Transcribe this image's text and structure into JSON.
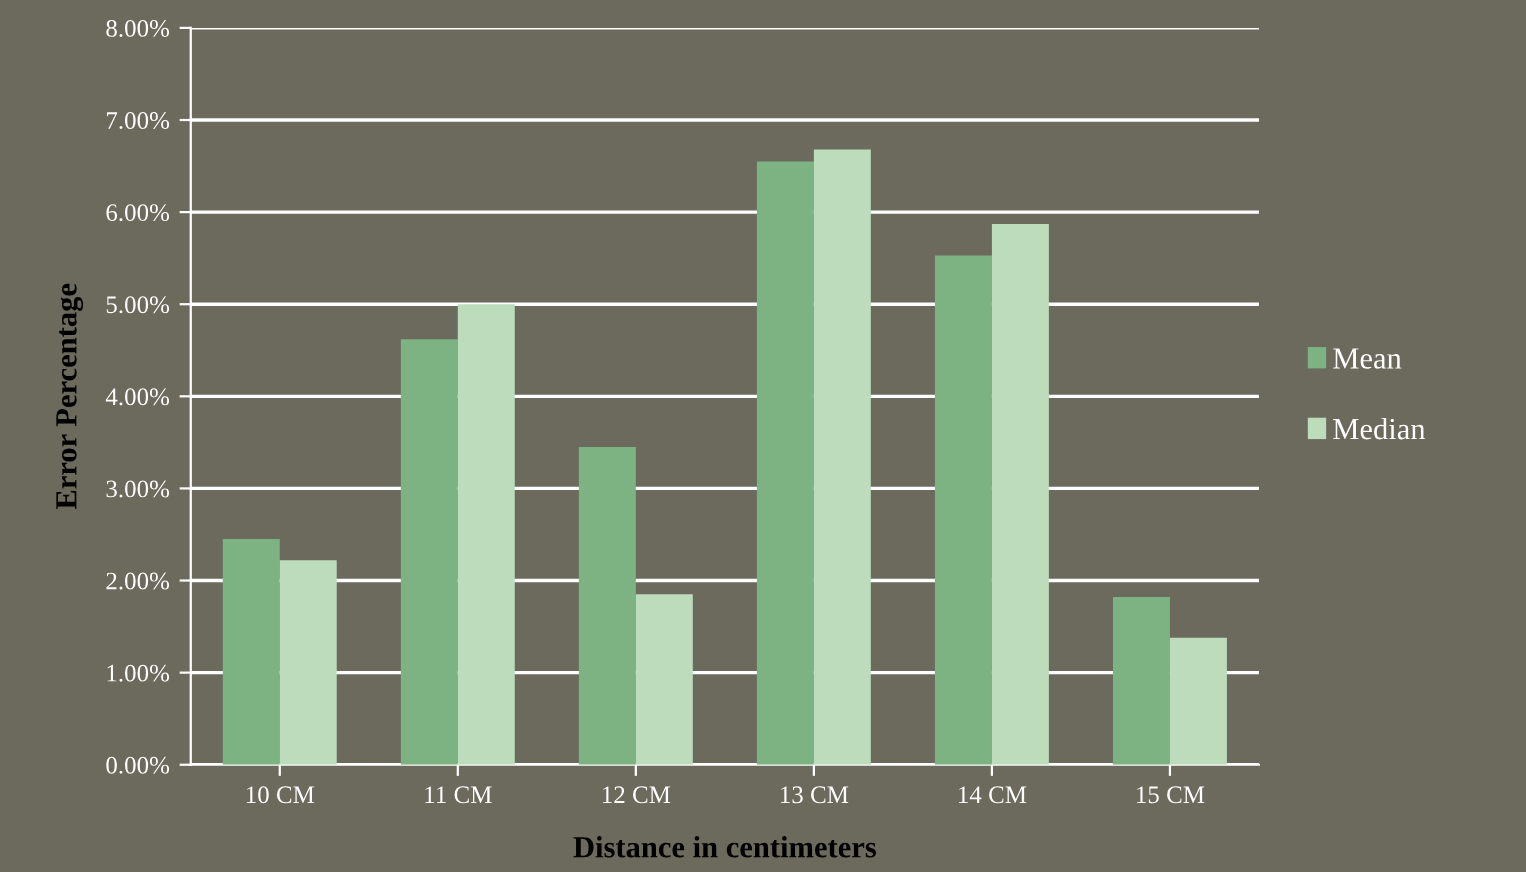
{
  "chart_data": {
    "type": "bar",
    "xlabel": "Distance in centimeters",
    "ylabel": "Error Percentage",
    "categories": [
      "10 CM",
      "11 CM",
      "12 CM",
      "13 CM",
      "14 CM",
      "15 CM"
    ],
    "series": [
      {
        "name": "Mean",
        "color": "#7db283",
        "values": [
          2.45,
          4.62,
          3.45,
          6.55,
          5.53,
          1.82
        ]
      },
      {
        "name": "Median",
        "color": "#bddcbc",
        "values": [
          2.22,
          5.0,
          1.85,
          6.68,
          5.87,
          1.38
        ]
      }
    ],
    "ylim": [
      0,
      8
    ],
    "yticks": [
      {
        "value": 0,
        "label": "0.00%"
      },
      {
        "value": 1,
        "label": "1.00%"
      },
      {
        "value": 2,
        "label": "2.00%"
      },
      {
        "value": 3,
        "label": "3.00%"
      },
      {
        "value": 4,
        "label": "4.00%"
      },
      {
        "value": 5,
        "label": "5.00%"
      },
      {
        "value": 6,
        "label": "6.00%"
      },
      {
        "value": 7,
        "label": "7.00%"
      },
      {
        "value": 8,
        "label": "8.00%"
      }
    ],
    "grid": "y",
    "legend": "right"
  }
}
